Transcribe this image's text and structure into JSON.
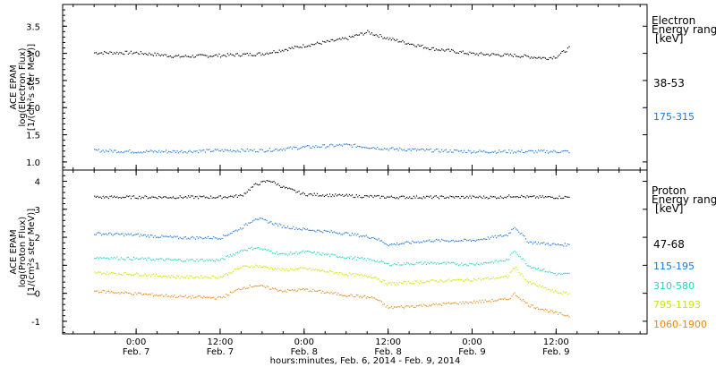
{
  "chart_data": [
    {
      "type": "scatter",
      "panel": "electron",
      "ylabel_lines": [
        "ACE EPAM",
        "log(Electron Flux)",
        "[1/(cm²s ster MeV)]"
      ],
      "ylim": [
        0.85,
        3.9
      ],
      "yticks": [
        1.0,
        1.5,
        2.0,
        2.5,
        3.0,
        3.5
      ],
      "ytick_labels": [
        "1.0",
        "1.5",
        "2.0",
        "2.5",
        "3.0",
        "3.5"
      ],
      "legend_title": [
        "Electron",
        "Energy ranges",
        "[keV]"
      ],
      "series": [
        {
          "name": "38-53",
          "color": "#000000",
          "x": [
            -6,
            0,
            6,
            12,
            18,
            24,
            30,
            33,
            36,
            42,
            48,
            54,
            58.5,
            60,
            62
          ],
          "y": [
            3.02,
            3.02,
            2.95,
            2.97,
            3.0,
            3.15,
            3.28,
            3.4,
            3.28,
            3.1,
            3.0,
            2.97,
            2.92,
            2.95,
            3.12
          ]
        },
        {
          "name": "175-315",
          "color": "#1e78d7",
          "x": [
            -6,
            0,
            6,
            12,
            18,
            24,
            30,
            36,
            42,
            48,
            54,
            60,
            62
          ],
          "y": [
            1.22,
            1.2,
            1.2,
            1.22,
            1.22,
            1.28,
            1.32,
            1.25,
            1.22,
            1.2,
            1.2,
            1.2,
            1.2
          ]
        }
      ]
    },
    {
      "type": "scatter",
      "panel": "proton",
      "ylabel_lines": [
        "ACE EPAM",
        "log(Proton Flux)",
        "[1/(cm²s ster MeV)]"
      ],
      "ylim": [
        -1.45,
        4.4
      ],
      "yticks": [
        -1,
        0,
        1,
        2,
        3,
        4
      ],
      "ytick_labels": [
        "-1",
        "0",
        "1",
        "2",
        "3",
        "4"
      ],
      "legend_title": [
        "Proton",
        "Energy ranges",
        "[keV]"
      ],
      "series": [
        {
          "name": "47-68",
          "color": "#000000",
          "x": [
            -6,
            0,
            6,
            12,
            15,
            17,
            19,
            21,
            24,
            30,
            36,
            42,
            48,
            52,
            54,
            56,
            60,
            62
          ],
          "y": [
            3.45,
            3.45,
            3.45,
            3.45,
            3.5,
            3.9,
            4.05,
            3.8,
            3.55,
            3.5,
            3.45,
            3.45,
            3.45,
            3.45,
            3.5,
            3.45,
            3.45,
            3.45
          ]
        },
        {
          "name": "115-195",
          "color": "#1e78d7",
          "x": [
            -6,
            0,
            6,
            12,
            15,
            17,
            18.5,
            21,
            24,
            30,
            34,
            36,
            42,
            48,
            53,
            54,
            56,
            60,
            62
          ],
          "y": [
            2.15,
            2.1,
            2.0,
            2.0,
            2.35,
            2.7,
            2.6,
            2.4,
            2.3,
            2.15,
            2.0,
            1.75,
            1.9,
            1.9,
            2.1,
            2.4,
            1.85,
            1.75,
            1.75
          ]
        },
        {
          "name": "310-580",
          "color": "#22d3c5",
          "x": [
            -6,
            0,
            6,
            12,
            15,
            17,
            21,
            24,
            30,
            34,
            36,
            42,
            48,
            53,
            54,
            56,
            60,
            62
          ],
          "y": [
            1.3,
            1.25,
            1.2,
            1.2,
            1.55,
            1.65,
            1.4,
            1.5,
            1.3,
            1.2,
            1.05,
            1.1,
            1.05,
            1.2,
            1.55,
            1.0,
            0.7,
            0.7
          ]
        },
        {
          "name": "795-1193",
          "color": "#c9e600",
          "x": [
            -6,
            0,
            6,
            12,
            15,
            17,
            21,
            24,
            30,
            34,
            36,
            42,
            48,
            53,
            54,
            56,
            60,
            62
          ],
          "y": [
            0.75,
            0.7,
            0.6,
            0.6,
            0.95,
            1.0,
            0.85,
            0.9,
            0.7,
            0.6,
            0.35,
            0.45,
            0.5,
            0.6,
            0.95,
            0.4,
            0.05,
            0.0
          ]
        },
        {
          "name": "1060-1900",
          "color": "#e8891a",
          "x": [
            -6,
            0,
            6,
            12,
            15,
            17,
            21,
            24,
            30,
            34,
            36,
            42,
            48,
            53,
            54,
            56,
            60,
            62
          ],
          "y": [
            0.1,
            0.0,
            -0.1,
            -0.15,
            0.2,
            0.3,
            0.1,
            0.15,
            -0.05,
            -0.15,
            -0.5,
            -0.4,
            -0.3,
            -0.2,
            0.0,
            -0.4,
            -0.7,
            -0.8
          ]
        }
      ]
    }
  ],
  "x_axis": {
    "xlim": [
      -10.5,
      73
    ],
    "ticks": [
      0,
      12,
      24,
      36,
      48,
      60
    ],
    "time_labels": [
      "0:00",
      "12:00",
      "0:00",
      "12:00",
      "0:00",
      "12:00"
    ],
    "date_labels": [
      "Feb. 7",
      "Feb. 7",
      "Feb. 8",
      "Feb. 8",
      "Feb. 9",
      "Feb. 9"
    ],
    "title": "hours:minutes, Feb.  6, 2014 - Feb.  9, 2014"
  }
}
